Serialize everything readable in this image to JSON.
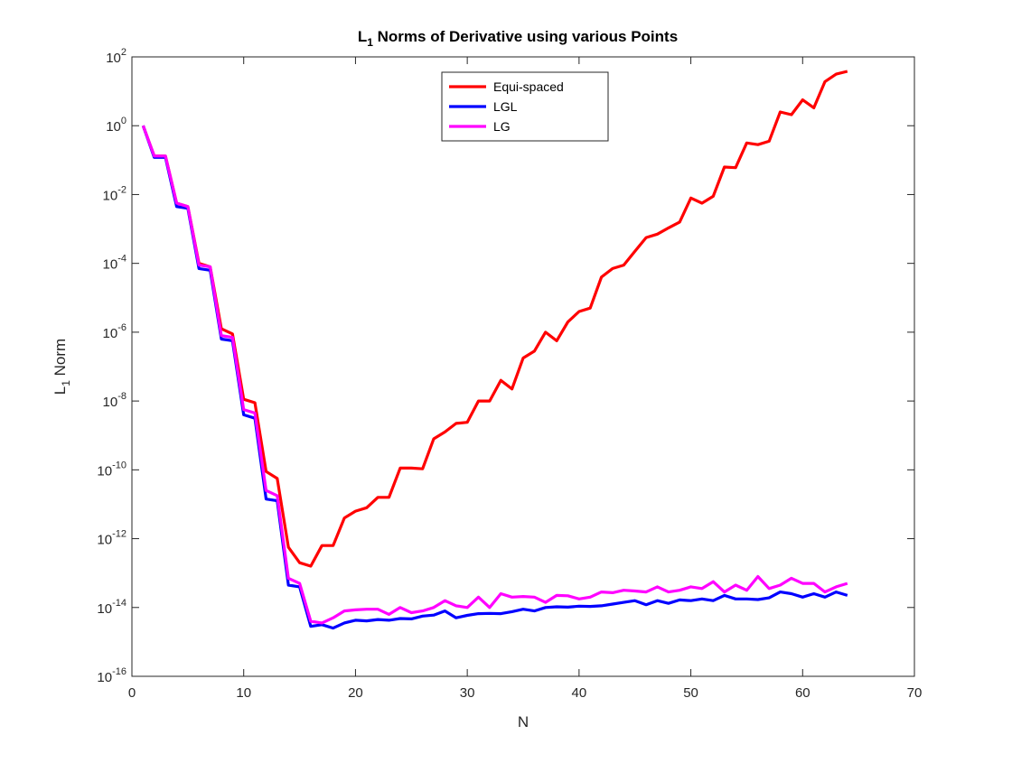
{
  "chart_data": {
    "type": "line",
    "title_main": "L",
    "title_sub": "1",
    "title_rest": " Norms of Derivative using various Points",
    "xlabel": "N",
    "ylabel_main": "L",
    "ylabel_sub": "1",
    "ylabel_rest": " Norm",
    "xlim": [
      0,
      70
    ],
    "ylim_exp": [
      -16,
      2
    ],
    "y_scale": "log",
    "grid": false,
    "legend_position": "top-center",
    "x_ticks": [
      "0",
      "10",
      "20",
      "30",
      "40",
      "50",
      "60",
      "70"
    ],
    "y_ticks": [
      {
        "base": "10",
        "exp": "-16"
      },
      {
        "base": "10",
        "exp": "-14"
      },
      {
        "base": "10",
        "exp": "-12"
      },
      {
        "base": "10",
        "exp": "-10"
      },
      {
        "base": "10",
        "exp": "-8"
      },
      {
        "base": "10",
        "exp": "-6"
      },
      {
        "base": "10",
        "exp": "-4"
      },
      {
        "base": "10",
        "exp": "-2"
      },
      {
        "base": "10",
        "exp": "0"
      },
      {
        "base": "10",
        "exp": "2"
      }
    ],
    "x": [
      1,
      2,
      3,
      4,
      5,
      6,
      7,
      8,
      9,
      10,
      11,
      12,
      13,
      14,
      15,
      16,
      17,
      18,
      19,
      20,
      21,
      22,
      23,
      24,
      25,
      26,
      27,
      28,
      29,
      30,
      31,
      32,
      33,
      34,
      35,
      36,
      37,
      38,
      39,
      40,
      41,
      42,
      43,
      44,
      45,
      46,
      47,
      48,
      49,
      50,
      51,
      52,
      53,
      54,
      55,
      56,
      57,
      58,
      59,
      60,
      61,
      62,
      63,
      64
    ],
    "series": [
      {
        "name": "Equi-spaced",
        "color": "#ff0000",
        "log10_values": [
          0.0,
          -0.88,
          -0.88,
          -2.25,
          -2.35,
          -4.0,
          -4.1,
          -5.9,
          -6.05,
          -7.95,
          -8.05,
          -10.05,
          -10.25,
          -12.25,
          -12.7,
          -12.8,
          -12.2,
          -12.2,
          -11.4,
          -11.2,
          -11.1,
          -10.8,
          -10.8,
          -9.95,
          -9.95,
          -9.97,
          -9.1,
          -8.9,
          -8.65,
          -8.62,
          -8.0,
          -8.0,
          -7.4,
          -7.65,
          -6.75,
          -6.55,
          -6.0,
          -6.25,
          -5.7,
          -5.4,
          -5.3,
          -4.4,
          -4.15,
          -4.05,
          -3.65,
          -3.25,
          -3.15,
          -2.97,
          -2.8,
          -2.1,
          -2.25,
          -2.05,
          -1.2,
          -1.22,
          -0.5,
          -0.55,
          -0.45,
          0.4,
          0.32,
          0.75,
          0.52,
          1.28,
          1.5,
          1.58
        ]
      },
      {
        "name": "LGL",
        "color": "#0000ff",
        "log10_values": [
          0.0,
          -0.92,
          -0.92,
          -2.35,
          -2.4,
          -4.15,
          -4.2,
          -6.2,
          -6.25,
          -8.4,
          -8.5,
          -10.85,
          -10.9,
          -13.35,
          -13.4,
          -14.55,
          -14.5,
          -14.6,
          -14.45,
          -14.37,
          -14.39,
          -14.35,
          -14.37,
          -14.32,
          -14.33,
          -14.25,
          -14.22,
          -14.1,
          -14.3,
          -14.23,
          -14.18,
          -14.17,
          -14.18,
          -14.12,
          -14.05,
          -14.1,
          -14.0,
          -13.98,
          -13.99,
          -13.96,
          -13.97,
          -13.95,
          -13.9,
          -13.85,
          -13.8,
          -13.92,
          -13.8,
          -13.88,
          -13.78,
          -13.8,
          -13.75,
          -13.8,
          -13.65,
          -13.75,
          -13.75,
          -13.77,
          -13.72,
          -13.55,
          -13.6,
          -13.7,
          -13.6,
          -13.7,
          -13.55,
          -13.65
        ]
      },
      {
        "name": "LG",
        "color": "#ff00ff",
        "log10_values": [
          0.0,
          -0.88,
          -0.88,
          -2.25,
          -2.35,
          -4.05,
          -4.1,
          -6.1,
          -6.15,
          -8.25,
          -8.35,
          -10.6,
          -10.75,
          -13.15,
          -13.3,
          -14.4,
          -14.45,
          -14.3,
          -14.1,
          -14.07,
          -14.05,
          -14.05,
          -14.2,
          -14.0,
          -14.15,
          -14.1,
          -14.0,
          -13.8,
          -13.95,
          -14.0,
          -13.7,
          -14.0,
          -13.6,
          -13.7,
          -13.68,
          -13.7,
          -13.85,
          -13.65,
          -13.66,
          -13.75,
          -13.7,
          -13.55,
          -13.57,
          -13.5,
          -13.52,
          -13.55,
          -13.4,
          -13.55,
          -13.5,
          -13.4,
          -13.45,
          -13.25,
          -13.55,
          -13.35,
          -13.5,
          -13.1,
          -13.45,
          -13.35,
          -13.15,
          -13.3,
          -13.3,
          -13.55,
          -13.4,
          -13.3
        ]
      }
    ]
  }
}
